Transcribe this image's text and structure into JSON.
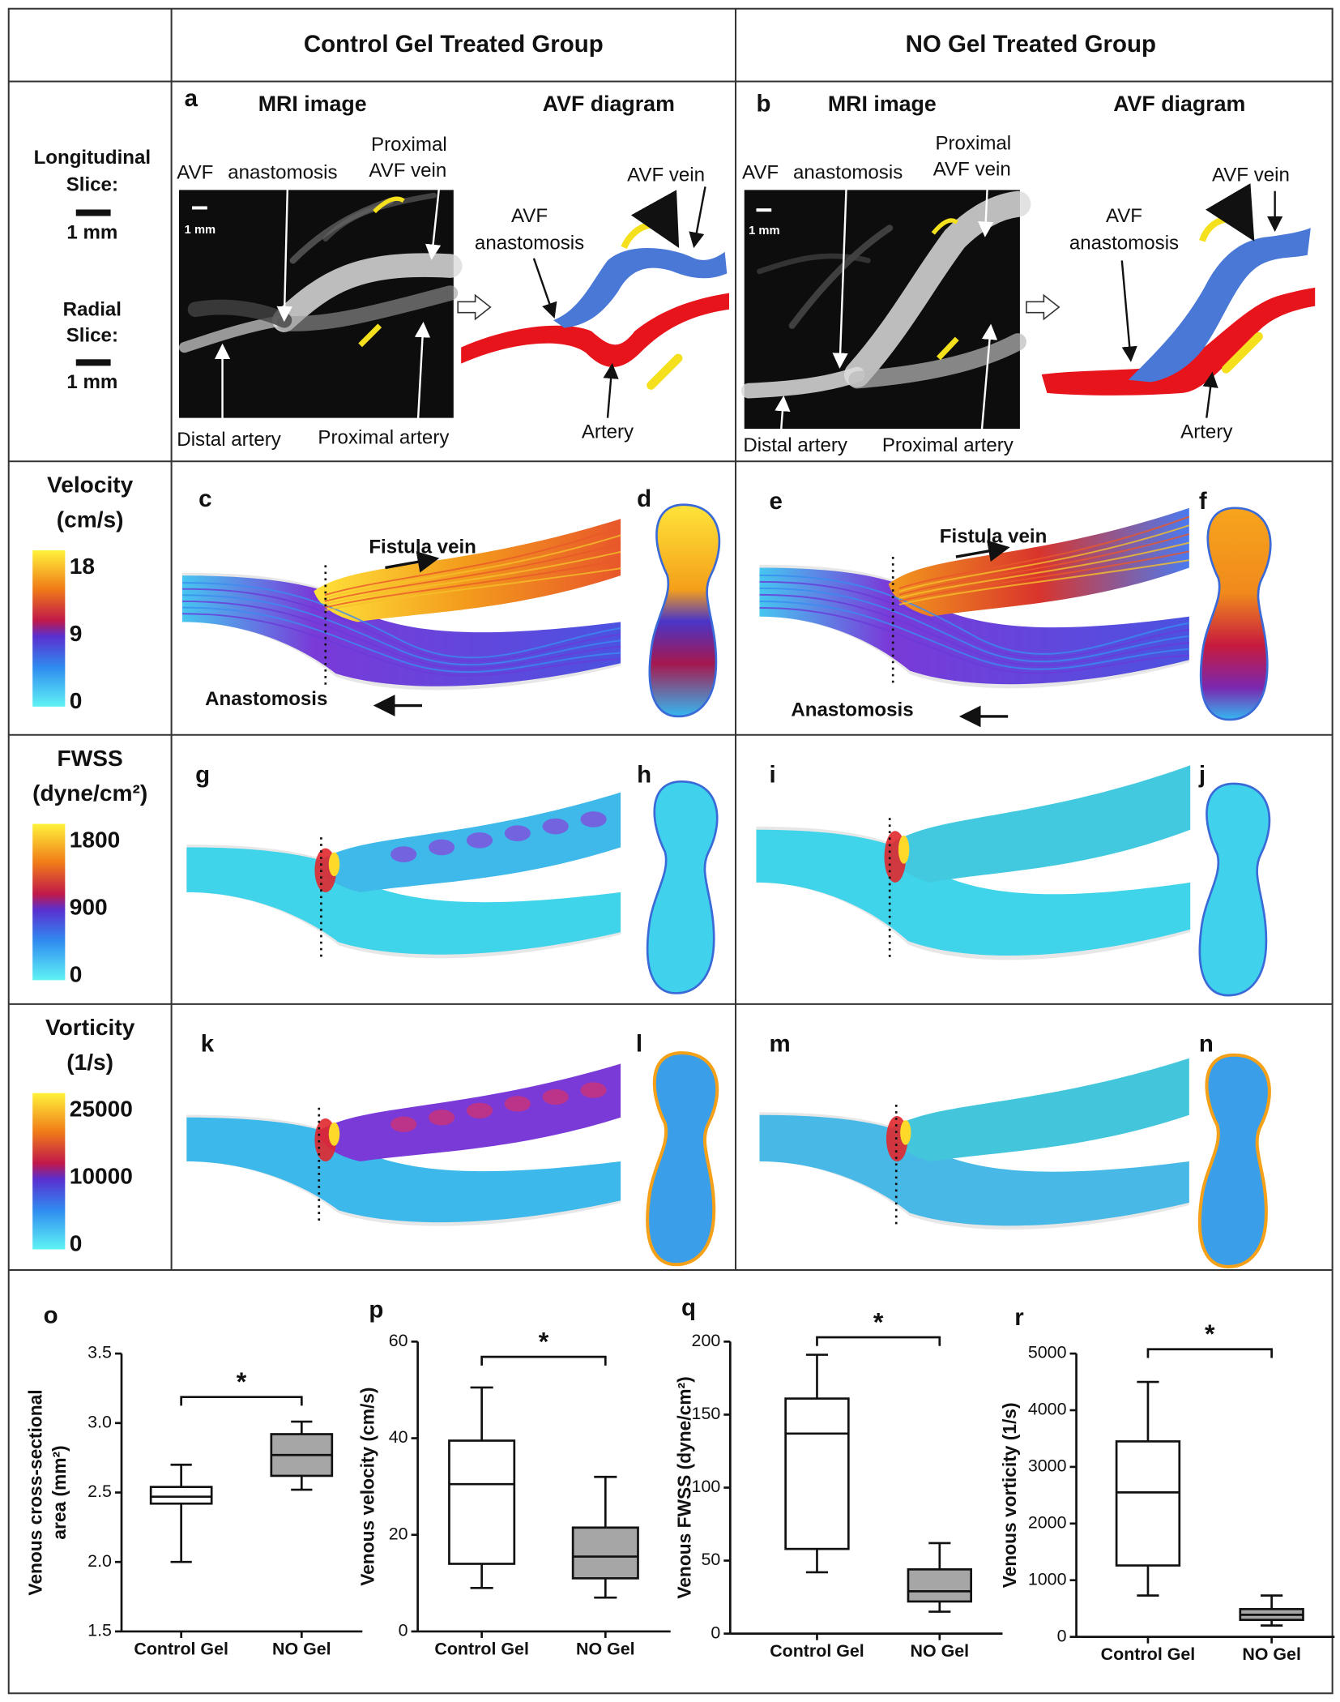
{
  "header": {
    "columns": [
      "Control Gel Treated Group",
      "NO Gel Treated Group"
    ]
  },
  "scale": {
    "longitudinal": [
      "Longitudinal",
      "Slice:"
    ],
    "longitudinal_bar": "1 mm",
    "radial": [
      "Radial",
      "Slice:"
    ],
    "radial_bar": "1 mm"
  },
  "mri_panels": [
    {
      "letter": "a",
      "mri_title": "MRI image",
      "diagram_title": "AVF diagram",
      "labels": [
        "AVF",
        "anastomosis",
        "Proximal",
        "AVF  vein",
        "1 mm",
        "Distal artery",
        "Proximal artery",
        "AVF  vein",
        "AVF",
        "anastomosis",
        "Artery"
      ]
    },
    {
      "letter": "b",
      "mri_title": "MRI image",
      "diagram_title": "AVF diagram",
      "labels": [
        "AVF",
        "anastomosis",
        "Proximal",
        "AVF  vein",
        "1 mm",
        "Distal artery",
        "Proximal artery",
        "AVF  vein",
        "AVF",
        "anastomosis",
        "Artery"
      ]
    }
  ],
  "rows": [
    {
      "title": [
        "Velocity",
        "(cm/s)"
      ],
      "colorbar_ticks": [
        18,
        9,
        0
      ],
      "panels": [
        "c",
        "d",
        "e",
        "f"
      ],
      "annotations": [
        "Fistula vein",
        "Anastomosis",
        "Fistula vein",
        "Anastomosis"
      ]
    },
    {
      "title": [
        "FWSS",
        "(dyne/cm²)"
      ],
      "colorbar_ticks": [
        1800,
        900,
        0
      ],
      "panels": [
        "g",
        "h",
        "i",
        "j"
      ]
    },
    {
      "title": [
        "Vorticity",
        "(1/s)"
      ],
      "colorbar_ticks": [
        25000,
        10000,
        0
      ],
      "panels": [
        "k",
        "l",
        "m",
        "n"
      ]
    }
  ],
  "chart_data": [
    {
      "type": "box",
      "panel": "o",
      "ylabel": [
        "Venous cross-sectional",
        "area (mm²)"
      ],
      "categories": [
        "Control Gel",
        "NO Gel"
      ],
      "colors": [
        "#ffffff",
        "#a6a6a6"
      ],
      "min": [
        2.0,
        2.52
      ],
      "q1": [
        2.42,
        2.62
      ],
      "median": [
        2.47,
        2.77
      ],
      "q3": [
        2.54,
        2.92
      ],
      "max": [
        2.7,
        3.01
      ],
      "ylim": [
        1.5,
        3.5
      ],
      "yticks": [
        1.5,
        {
          "value": 2,
          "label": "2.0"
        },
        2.5,
        {
          "value": 3,
          "label": "3.0"
        },
        3.5
      ],
      "annotation": "*"
    },
    {
      "type": "box",
      "panel": "p",
      "ylabel": [
        "Venous velocity (cm/s)"
      ],
      "categories": [
        "Control Gel",
        "NO Gel"
      ],
      "colors": [
        "#ffffff",
        "#a6a6a6"
      ],
      "min": [
        9,
        7
      ],
      "q1": [
        14,
        11
      ],
      "median": [
        30.5,
        15.5
      ],
      "q3": [
        39.5,
        21.5
      ],
      "max": [
        50.5,
        32
      ],
      "ylim": [
        0,
        60
      ],
      "yticks": [
        0,
        20,
        40,
        60
      ],
      "annotation": "*"
    },
    {
      "type": "box",
      "panel": "q",
      "ylabel": [
        "Venous FWSS (dyne/cm²)"
      ],
      "categories": [
        "Control Gel",
        "NO Gel"
      ],
      "colors": [
        "#ffffff",
        "#a6a6a6"
      ],
      "min": [
        42,
        15
      ],
      "q1": [
        58,
        22
      ],
      "median": [
        137,
        29
      ],
      "q3": [
        161,
        44
      ],
      "max": [
        191,
        62
      ],
      "ylim": [
        0,
        200
      ],
      "yticks": [
        0,
        50,
        100,
        150,
        200
      ],
      "annotation": "*"
    },
    {
      "type": "box",
      "panel": "r",
      "ylabel": [
        "Venous vorticity (1/s)"
      ],
      "categories": [
        "Control Gel",
        "NO Gel"
      ],
      "colors": [
        "#ffffff",
        "#a6a6a6"
      ],
      "min": [
        730,
        200
      ],
      "q1": [
        1260,
        300
      ],
      "median": [
        2550,
        390
      ],
      "q3": [
        3450,
        490
      ],
      "max": [
        4500,
        730
      ],
      "ylim": [
        0,
        5000
      ],
      "yticks": [
        0,
        1000,
        2000,
        3000,
        4000,
        5000
      ],
      "annotation": "*"
    }
  ]
}
